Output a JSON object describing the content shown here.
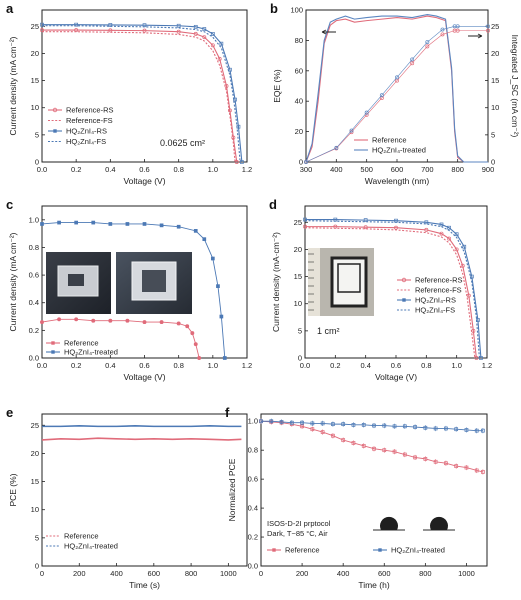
{
  "colors": {
    "reference": "#e06b7a",
    "hq": "#4c79b5",
    "grey": "#8a8a8a"
  },
  "chart_data": [
    {
      "id": "a",
      "panel_label": "a",
      "type": "line",
      "xlabel": "Voltage (V)",
      "ylabel": "Current density  (mA cm⁻²)",
      "xlim": [
        0.0,
        1.2
      ],
      "ylim": [
        0,
        28
      ],
      "xticks": [
        "0.0",
        "0.2",
        "0.4",
        "0.6",
        "0.8",
        "1.0",
        "1.2"
      ],
      "yticks": [
        "0",
        "5",
        "10",
        "15",
        "20",
        "25"
      ],
      "annotation": "0.0625 cm²",
      "legend": [
        "Reference-RS",
        "Reference-FS",
        "HQ₂ZnI₄-RS",
        "HQ₂ZnI₄-FS"
      ],
      "series": [
        {
          "name": "Reference-RS",
          "x": [
            0,
            0.2,
            0.4,
            0.6,
            0.8,
            0.9,
            0.95,
            1.0,
            1.04,
            1.08,
            1.1,
            1.12,
            1.14
          ],
          "y": [
            24.3,
            24.3,
            24.25,
            24.2,
            24.0,
            23.6,
            23.0,
            21.5,
            19.0,
            14.0,
            9.5,
            4.5,
            0
          ]
        },
        {
          "name": "Reference-FS",
          "x": [
            0,
            0.2,
            0.4,
            0.6,
            0.8,
            0.9,
            0.95,
            1.0,
            1.04,
            1.08,
            1.1,
            1.12,
            1.13
          ],
          "y": [
            24.0,
            24.0,
            23.9,
            23.8,
            23.5,
            23.0,
            22.3,
            20.5,
            17.8,
            13.0,
            8.5,
            3.5,
            0
          ]
        },
        {
          "name": "HQ₂ZnI₄-RS",
          "x": [
            0,
            0.2,
            0.4,
            0.6,
            0.8,
            0.9,
            0.95,
            1.0,
            1.05,
            1.1,
            1.13,
            1.15,
            1.17
          ],
          "y": [
            25.3,
            25.3,
            25.25,
            25.2,
            25.1,
            24.9,
            24.5,
            23.6,
            21.8,
            17.0,
            11.5,
            6.5,
            0
          ]
        },
        {
          "name": "HQ₂ZnI₄-FS",
          "x": [
            0,
            0.2,
            0.4,
            0.6,
            0.8,
            0.9,
            0.95,
            1.0,
            1.05,
            1.1,
            1.12,
            1.14,
            1.16
          ],
          "y": [
            25.1,
            25.1,
            25.0,
            24.9,
            24.7,
            24.4,
            24.0,
            23.0,
            21.0,
            16.0,
            12.0,
            7.0,
            0
          ]
        }
      ]
    },
    {
      "id": "b",
      "panel_label": "b",
      "type": "line",
      "xlabel": "Wavelength (nm)",
      "ylabel": "EQE (%)",
      "y2label": "Integrated J_SC  (mA cm⁻²)",
      "xlim": [
        300,
        900
      ],
      "ylim": [
        0,
        100
      ],
      "y2lim": [
        0,
        28
      ],
      "xticks": [
        "300",
        "400",
        "500",
        "600",
        "700",
        "800",
        "900"
      ],
      "yticks": [
        "0",
        "20",
        "40",
        "60",
        "80",
        "100"
      ],
      "y2ticks": [
        "0",
        "5",
        "10",
        "15",
        "20",
        "25"
      ],
      "legend": [
        "Reference",
        "HQ₂ZnI₄-treated"
      ],
      "series": [
        {
          "name": "Reference",
          "axis": "left",
          "x": [
            300,
            320,
            340,
            360,
            380,
            400,
            430,
            460,
            500,
            550,
            600,
            650,
            700,
            730,
            760,
            780,
            790,
            800,
            820,
            900
          ],
          "y": [
            0,
            10,
            40,
            78,
            90,
            93,
            94,
            92,
            93,
            94,
            95,
            94,
            96,
            95,
            93,
            60,
            20,
            3,
            0,
            0
          ]
        },
        {
          "name": "HQ₂ZnI₄-treated",
          "axis": "left",
          "x": [
            300,
            320,
            340,
            360,
            380,
            400,
            430,
            460,
            500,
            550,
            600,
            650,
            700,
            730,
            760,
            780,
            790,
            800,
            820,
            900
          ],
          "y": [
            0,
            12,
            45,
            80,
            92,
            94,
            96,
            94,
            95,
            96,
            96,
            95,
            97,
            96,
            94,
            62,
            22,
            4,
            0,
            0
          ]
        },
        {
          "name": "Reference",
          "axis": "right",
          "x": [
            300,
            400,
            450,
            500,
            550,
            600,
            650,
            700,
            750,
            790,
            800,
            900
          ],
          "y": [
            0,
            2.5,
            5.5,
            8.7,
            11.8,
            15.0,
            18.2,
            21.3,
            23.5,
            24.2,
            24.2,
            24.2
          ]
        },
        {
          "name": "HQ₂ZnI₄-treated",
          "axis": "right",
          "x": [
            300,
            400,
            450,
            500,
            550,
            600,
            650,
            700,
            750,
            790,
            800,
            900
          ],
          "y": [
            0,
            2.6,
            5.8,
            9.1,
            12.3,
            15.6,
            18.9,
            22.1,
            24.4,
            25.0,
            25.0,
            25.0
          ]
        }
      ]
    },
    {
      "id": "c",
      "panel_label": "c",
      "type": "line",
      "xlabel": "Voltage (V)",
      "ylabel": "Current density  (mA cm⁻²)",
      "xlim": [
        0.0,
        1.2
      ],
      "ylim": [
        0,
        1.1
      ],
      "xticks": [
        "0.0",
        "0.2",
        "0.4",
        "0.6",
        "0.8",
        "1.0",
        "1.2"
      ],
      "yticks": [
        "0.0",
        "0.2",
        "0.4",
        "0.6",
        "0.8",
        "1.0"
      ],
      "legend": [
        "Reference",
        "HQ₂ZnI₄-treated"
      ],
      "series": [
        {
          "name": "Reference",
          "x": [
            0,
            0.1,
            0.2,
            0.3,
            0.4,
            0.5,
            0.6,
            0.7,
            0.8,
            0.85,
            0.88,
            0.9,
            0.92
          ],
          "y": [
            0.26,
            0.28,
            0.28,
            0.27,
            0.27,
            0.27,
            0.26,
            0.26,
            0.25,
            0.23,
            0.18,
            0.1,
            0
          ]
        },
        {
          "name": "HQ₂ZnI₄-treated",
          "x": [
            0,
            0.1,
            0.2,
            0.3,
            0.4,
            0.5,
            0.6,
            0.7,
            0.8,
            0.9,
            0.95,
            1.0,
            1.03,
            1.05,
            1.07
          ],
          "y": [
            0.97,
            0.98,
            0.98,
            0.98,
            0.97,
            0.97,
            0.97,
            0.96,
            0.95,
            0.92,
            0.86,
            0.72,
            0.52,
            0.3,
            0
          ]
        }
      ]
    },
    {
      "id": "d",
      "panel_label": "d",
      "type": "line",
      "xlabel": "Voltage (V)",
      "ylabel": "Current density  (mA·cm⁻²)",
      "xlim": [
        0.0,
        1.2
      ],
      "ylim": [
        0,
        28
      ],
      "xticks": [
        "0.0",
        "0.2",
        "0.4",
        "0.6",
        "0.8",
        "1.0",
        "1.2"
      ],
      "yticks": [
        "0",
        "5",
        "10",
        "15",
        "20",
        "25"
      ],
      "annotation": "1 cm²",
      "legend": [
        "Reference-RS",
        "Reference-FS",
        "HQ₂ZnI₄-RS",
        "HQ₂ZnI₄-FS"
      ],
      "series": [
        {
          "name": "Reference-RS",
          "x": [
            0,
            0.2,
            0.4,
            0.6,
            0.8,
            0.9,
            0.95,
            1.0,
            1.04,
            1.08,
            1.11,
            1.13
          ],
          "y": [
            24.2,
            24.2,
            24.1,
            24.0,
            23.6,
            22.9,
            22.0,
            20.0,
            17.0,
            11.5,
            5.0,
            0
          ]
        },
        {
          "name": "Reference-FS",
          "x": [
            0,
            0.2,
            0.4,
            0.6,
            0.8,
            0.9,
            0.95,
            1.0,
            1.04,
            1.07,
            1.1,
            1.12
          ],
          "y": [
            24.0,
            23.9,
            23.8,
            23.6,
            23.1,
            22.3,
            21.2,
            19.0,
            15.5,
            11.0,
            4.5,
            0
          ]
        },
        {
          "name": "HQ₂ZnI₄-RS",
          "x": [
            0,
            0.2,
            0.4,
            0.6,
            0.8,
            0.9,
            0.95,
            1.0,
            1.05,
            1.1,
            1.14,
            1.16
          ],
          "y": [
            25.5,
            25.5,
            25.4,
            25.3,
            25.0,
            24.6,
            24.0,
            22.8,
            20.5,
            15.0,
            7.0,
            0
          ]
        },
        {
          "name": "HQ₂ZnI₄-FS",
          "x": [
            0,
            0.2,
            0.4,
            0.6,
            0.8,
            0.9,
            0.95,
            1.0,
            1.05,
            1.1,
            1.13,
            1.15
          ],
          "y": [
            25.3,
            25.2,
            25.1,
            25.0,
            24.7,
            24.2,
            23.5,
            22.2,
            19.5,
            14.0,
            7.5,
            0
          ]
        }
      ]
    },
    {
      "id": "e",
      "panel_label": "e",
      "type": "line",
      "xlabel": "Time (s)",
      "ylabel": "PCE (%)",
      "xlim": [
        0,
        1100
      ],
      "ylim": [
        0,
        27
      ],
      "xticks": [
        "0",
        "200",
        "400",
        "600",
        "800",
        "1000"
      ],
      "yticks": [
        "0",
        "5",
        "10",
        "15",
        "20",
        "25"
      ],
      "legend": [
        "Reference",
        "HQ₂ZnI₄-treated"
      ],
      "series": [
        {
          "name": "Reference",
          "x": [
            0,
            100,
            200,
            300,
            400,
            500,
            600,
            700,
            800,
            900,
            1000,
            1070
          ],
          "y": [
            22.4,
            22.6,
            22.5,
            22.7,
            22.6,
            22.5,
            22.6,
            22.5,
            22.6,
            22.5,
            22.4,
            22.5
          ]
        },
        {
          "name": "HQ₂ZnI₄-treated",
          "x": [
            0,
            100,
            200,
            300,
            400,
            500,
            600,
            700,
            800,
            900,
            1000,
            1070
          ],
          "y": [
            24.8,
            24.8,
            24.9,
            24.8,
            24.8,
            24.9,
            24.8,
            24.8,
            24.8,
            24.9,
            24.8,
            24.8
          ]
        }
      ]
    },
    {
      "id": "f",
      "panel_label": "f",
      "type": "line",
      "xlabel": "Time (h)",
      "ylabel": "Normalized PCE",
      "xlim": [
        0,
        1100
      ],
      "ylim": [
        0,
        1.05
      ],
      "xticks": [
        "0",
        "200",
        "400",
        "600",
        "800",
        "1000"
      ],
      "yticks": [
        "0.0",
        "0.2",
        "0.4",
        "0.6",
        "0.8",
        "1.0"
      ],
      "annotation_lines": [
        "ISOS-D-2I prptocol",
        "Dark, T~85 °C, Air"
      ],
      "legend": [
        "Reference",
        "HQ₂ZnI₄-treated"
      ],
      "series": [
        {
          "name": "Reference",
          "x": [
            0,
            50,
            100,
            150,
            200,
            250,
            300,
            350,
            400,
            450,
            500,
            550,
            600,
            650,
            700,
            750,
            800,
            850,
            900,
            950,
            1000,
            1050,
            1080
          ],
          "y": [
            1.0,
            0.995,
            0.99,
            0.98,
            0.965,
            0.945,
            0.925,
            0.9,
            0.87,
            0.85,
            0.83,
            0.81,
            0.8,
            0.79,
            0.77,
            0.75,
            0.74,
            0.72,
            0.71,
            0.69,
            0.68,
            0.66,
            0.65
          ]
        },
        {
          "name": "HQ₂ZnI₄-treated",
          "x": [
            0,
            50,
            100,
            150,
            200,
            250,
            300,
            350,
            400,
            450,
            500,
            550,
            600,
            650,
            700,
            750,
            800,
            850,
            900,
            950,
            1000,
            1050,
            1080
          ],
          "y": [
            1.0,
            1.0,
            0.995,
            0.99,
            0.99,
            0.985,
            0.985,
            0.98,
            0.98,
            0.975,
            0.975,
            0.97,
            0.97,
            0.965,
            0.965,
            0.96,
            0.955,
            0.95,
            0.95,
            0.945,
            0.94,
            0.935,
            0.935
          ]
        }
      ]
    }
  ]
}
